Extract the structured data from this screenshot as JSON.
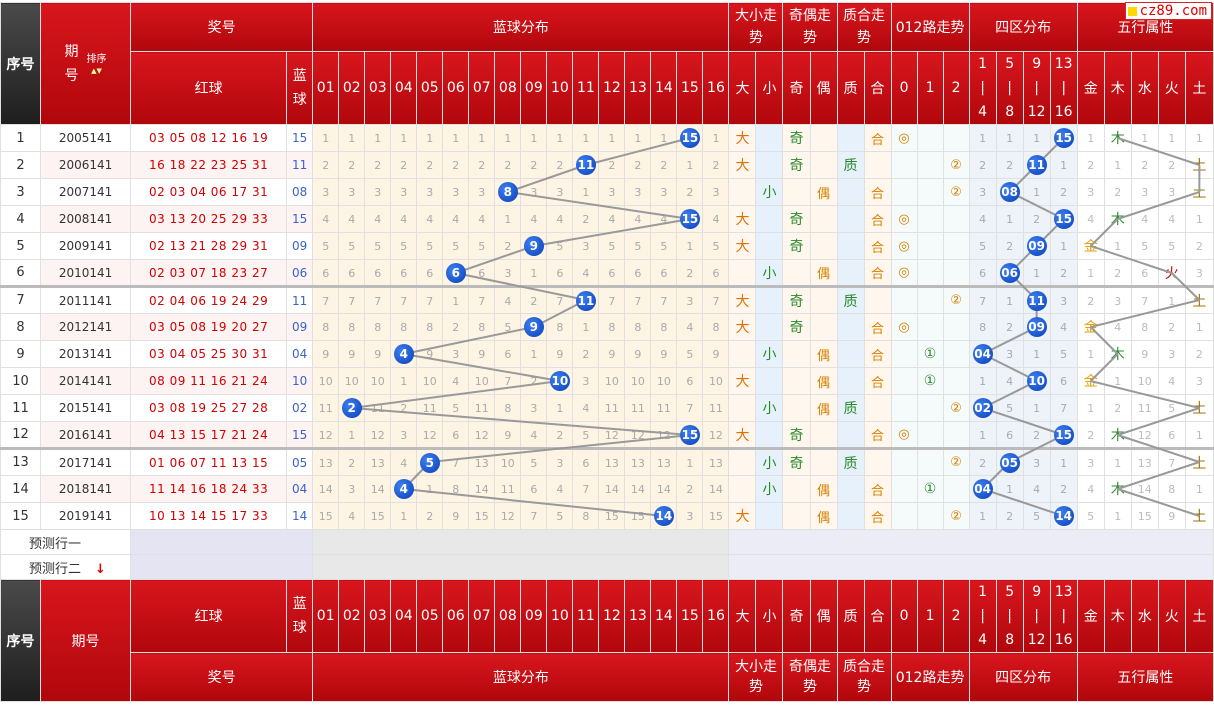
{
  "site_badge": "cz89.com",
  "header": {
    "xuhao": "序号",
    "qihao": "期号",
    "sort": "排序",
    "jianghao": "奖号",
    "blue_dist": "蓝球分布",
    "daxiao": "大小走势",
    "jiou": "奇偶走势",
    "zhihe": "质合走势",
    "lu012": "012路走势",
    "siqu": "四区分布",
    "wuxing": "五行属性",
    "red": "红球",
    "blue": "蓝球",
    "nums": [
      "01",
      "02",
      "03",
      "04",
      "05",
      "06",
      "07",
      "08",
      "09",
      "10",
      "11",
      "12",
      "13",
      "14",
      "15",
      "16"
    ],
    "dx": [
      "大",
      "小"
    ],
    "jo": [
      "奇",
      "偶"
    ],
    "zh": [
      "质",
      "合"
    ],
    "lu": [
      "0",
      "1",
      "2"
    ],
    "qu": [
      [
        "1",
        "4"
      ],
      [
        "5",
        "8"
      ],
      [
        "9",
        "12"
      ],
      [
        "13",
        "16"
      ]
    ],
    "wx": [
      "金",
      "木",
      "水",
      "火",
      "土"
    ]
  },
  "rows": [
    {
      "idx": "1",
      "period": "2005141",
      "reds": "03 05 08 12 16 19",
      "blue": "15",
      "dist": [
        "1",
        "1",
        "1",
        "1",
        "1",
        "1",
        "1",
        "1",
        "1",
        "1",
        "1",
        "1",
        "1",
        "1",
        "15",
        "1"
      ],
      "dx": [
        "大",
        ""
      ],
      "jo": [
        "奇",
        ""
      ],
      "zh": [
        "",
        "合"
      ],
      "lu": [
        "◎",
        "",
        ""
      ],
      "qu": [
        "1",
        "1",
        "1",
        "15"
      ],
      "wx": [
        "1",
        "木",
        "1",
        "1",
        "1"
      ]
    },
    {
      "idx": "2",
      "period": "2006141",
      "reds": "16 18 22 23 25 31",
      "blue": "11",
      "dist": [
        "2",
        "2",
        "2",
        "2",
        "2",
        "2",
        "2",
        "2",
        "2",
        "2",
        "11",
        "2",
        "2",
        "2",
        "1",
        "2"
      ],
      "dx": [
        "大",
        ""
      ],
      "jo": [
        "奇",
        ""
      ],
      "zh": [
        "质",
        ""
      ],
      "lu": [
        "",
        "",
        "②"
      ],
      "qu": [
        "2",
        "2",
        "11",
        "1"
      ],
      "wx": [
        "2",
        "1",
        "2",
        "2",
        "土"
      ]
    },
    {
      "idx": "3",
      "period": "2007141",
      "reds": "02 03 04 06 17 31",
      "blue": "08",
      "dist": [
        "3",
        "3",
        "3",
        "3",
        "3",
        "3",
        "3",
        "8",
        "3",
        "3",
        "1",
        "3",
        "3",
        "3",
        "2",
        "3"
      ],
      "dx": [
        "",
        "小"
      ],
      "jo": [
        "",
        "偶"
      ],
      "zh": [
        "",
        "合"
      ],
      "lu": [
        "",
        "",
        "②"
      ],
      "qu": [
        "3",
        "08",
        "1",
        "2"
      ],
      "wx": [
        "3",
        "2",
        "3",
        "3",
        "土"
      ]
    },
    {
      "idx": "4",
      "period": "2008141",
      "reds": "03 13 20 25 29 33",
      "blue": "15",
      "dist": [
        "4",
        "4",
        "4",
        "4",
        "4",
        "4",
        "4",
        "1",
        "4",
        "4",
        "2",
        "4",
        "4",
        "4",
        "15",
        "4"
      ],
      "dx": [
        "大",
        ""
      ],
      "jo": [
        "奇",
        ""
      ],
      "zh": [
        "",
        "合"
      ],
      "lu": [
        "◎",
        "",
        ""
      ],
      "qu": [
        "4",
        "1",
        "2",
        "15"
      ],
      "wx": [
        "4",
        "木",
        "4",
        "4",
        "1"
      ]
    },
    {
      "idx": "5",
      "period": "2009141",
      "reds": "02 13 21 28 29 31",
      "blue": "09",
      "dist": [
        "5",
        "5",
        "5",
        "5",
        "5",
        "5",
        "5",
        "2",
        "9",
        "5",
        "3",
        "5",
        "5",
        "5",
        "1",
        "5"
      ],
      "dx": [
        "大",
        ""
      ],
      "jo": [
        "奇",
        ""
      ],
      "zh": [
        "",
        "合"
      ],
      "lu": [
        "◎",
        "",
        ""
      ],
      "qu": [
        "5",
        "2",
        "09",
        "1"
      ],
      "wx": [
        "金",
        "1",
        "5",
        "5",
        "2"
      ]
    },
    {
      "idx": "6",
      "period": "2010141",
      "reds": "02 03 07 18 23 27",
      "blue": "06",
      "dist": [
        "6",
        "6",
        "6",
        "6",
        "6",
        "6",
        "6",
        "3",
        "1",
        "6",
        "4",
        "6",
        "6",
        "6",
        "2",
        "6"
      ],
      "dx": [
        "",
        "小"
      ],
      "jo": [
        "",
        "偶"
      ],
      "zh": [
        "",
        "合"
      ],
      "lu": [
        "◎",
        "",
        ""
      ],
      "qu": [
        "6",
        "06",
        "1",
        "2"
      ],
      "wx": [
        "1",
        "2",
        "6",
        "火",
        "3"
      ]
    },
    {
      "idx": "7",
      "period": "2011141",
      "reds": "02 04 06 19 24 29",
      "blue": "11",
      "dist": [
        "7",
        "7",
        "7",
        "7",
        "7",
        "1",
        "7",
        "4",
        "2",
        "7",
        "11",
        "7",
        "7",
        "7",
        "3",
        "7"
      ],
      "dx": [
        "大",
        ""
      ],
      "jo": [
        "奇",
        ""
      ],
      "zh": [
        "质",
        ""
      ],
      "lu": [
        "",
        "",
        "②"
      ],
      "qu": [
        "7",
        "1",
        "11",
        "3"
      ],
      "wx": [
        "2",
        "3",
        "7",
        "1",
        "土"
      ]
    },
    {
      "idx": "8",
      "period": "2012141",
      "reds": "03 05 08 19 20 27",
      "blue": "09",
      "dist": [
        "8",
        "8",
        "8",
        "8",
        "8",
        "2",
        "8",
        "5",
        "9",
        "8",
        "1",
        "8",
        "8",
        "8",
        "4",
        "8"
      ],
      "dx": [
        "大",
        ""
      ],
      "jo": [
        "奇",
        ""
      ],
      "zh": [
        "",
        "合"
      ],
      "lu": [
        "◎",
        "",
        ""
      ],
      "qu": [
        "8",
        "2",
        "09",
        "4"
      ],
      "wx": [
        "金",
        "4",
        "8",
        "2",
        "1"
      ]
    },
    {
      "idx": "9",
      "period": "2013141",
      "reds": "03 04 05 25 30 31",
      "blue": "04",
      "dist": [
        "9",
        "9",
        "9",
        "4",
        "9",
        "3",
        "9",
        "6",
        "1",
        "9",
        "2",
        "9",
        "9",
        "9",
        "5",
        "9"
      ],
      "dx": [
        "",
        "小"
      ],
      "jo": [
        "",
        "偶"
      ],
      "zh": [
        "",
        "合"
      ],
      "lu": [
        "",
        "①",
        ""
      ],
      "qu": [
        "04",
        "3",
        "1",
        "5"
      ],
      "wx": [
        "1",
        "木",
        "9",
        "3",
        "2"
      ]
    },
    {
      "idx": "10",
      "period": "2014141",
      "reds": "08 09 11 16 21 24",
      "blue": "10",
      "dist": [
        "10",
        "10",
        "10",
        "1",
        "10",
        "4",
        "10",
        "7",
        "2",
        "10",
        "3",
        "10",
        "10",
        "10",
        "6",
        "10"
      ],
      "dx": [
        "大",
        ""
      ],
      "jo": [
        "",
        "偶"
      ],
      "zh": [
        "",
        "合"
      ],
      "lu": [
        "",
        "①",
        ""
      ],
      "qu": [
        "1",
        "4",
        "10",
        "6"
      ],
      "wx": [
        "金",
        "1",
        "10",
        "4",
        "3"
      ]
    },
    {
      "idx": "11",
      "period": "2015141",
      "reds": "03 08 19 25 27 28",
      "blue": "02",
      "dist": [
        "11",
        "2",
        "11",
        "2",
        "11",
        "5",
        "11",
        "8",
        "3",
        "1",
        "4",
        "11",
        "11",
        "11",
        "7",
        "11"
      ],
      "dx": [
        "",
        "小"
      ],
      "jo": [
        "",
        "偶"
      ],
      "zh": [
        "质",
        ""
      ],
      "lu": [
        "",
        "",
        "②"
      ],
      "qu": [
        "02",
        "5",
        "1",
        "7"
      ],
      "wx": [
        "1",
        "2",
        "11",
        "5",
        "土"
      ]
    },
    {
      "idx": "12",
      "period": "2016141",
      "reds": "04 13 15 17 21 24",
      "blue": "15",
      "dist": [
        "12",
        "1",
        "12",
        "3",
        "12",
        "6",
        "12",
        "9",
        "4",
        "2",
        "5",
        "12",
        "12",
        "12",
        "15",
        "12"
      ],
      "dx": [
        "大",
        ""
      ],
      "jo": [
        "奇",
        ""
      ],
      "zh": [
        "",
        "合"
      ],
      "lu": [
        "◎",
        "",
        ""
      ],
      "qu": [
        "1",
        "6",
        "2",
        "15"
      ],
      "wx": [
        "2",
        "木",
        "12",
        "6",
        "1"
      ]
    },
    {
      "idx": "13",
      "period": "2017141",
      "reds": "01 06 07 11 13 15",
      "blue": "05",
      "dist": [
        "13",
        "2",
        "13",
        "4",
        "5",
        "7",
        "13",
        "10",
        "5",
        "3",
        "6",
        "13",
        "13",
        "13",
        "1",
        "13"
      ],
      "dx": [
        "",
        "小"
      ],
      "jo": [
        "奇",
        ""
      ],
      "zh": [
        "质",
        ""
      ],
      "lu": [
        "",
        "",
        "②"
      ],
      "qu": [
        "2",
        "05",
        "3",
        "1"
      ],
      "wx": [
        "3",
        "1",
        "13",
        "7",
        "土"
      ]
    },
    {
      "idx": "14",
      "period": "2018141",
      "reds": "11 14 16 18 24 33",
      "blue": "04",
      "dist": [
        "14",
        "3",
        "14",
        "4",
        "1",
        "8",
        "14",
        "11",
        "6",
        "4",
        "7",
        "14",
        "14",
        "14",
        "2",
        "14"
      ],
      "dx": [
        "",
        "小"
      ],
      "jo": [
        "",
        "偶"
      ],
      "zh": [
        "",
        "合"
      ],
      "lu": [
        "",
        "①",
        ""
      ],
      "qu": [
        "04",
        "1",
        "4",
        "2"
      ],
      "wx": [
        "4",
        "木",
        "14",
        "8",
        "1"
      ]
    },
    {
      "idx": "15",
      "period": "2019141",
      "reds": "10 13 14 15 17 33",
      "blue": "14",
      "dist": [
        "15",
        "4",
        "15",
        "1",
        "2",
        "9",
        "15",
        "12",
        "7",
        "5",
        "8",
        "15",
        "15",
        "14",
        "3",
        "15"
      ],
      "dx": [
        "大",
        ""
      ],
      "jo": [
        "",
        "偶"
      ],
      "zh": [
        "",
        "合"
      ],
      "lu": [
        "",
        "",
        "②"
      ],
      "qu": [
        "1",
        "2",
        "5",
        "14"
      ],
      "wx": [
        "5",
        "1",
        "15",
        "9",
        "土"
      ]
    }
  ],
  "predict": [
    "预测行一",
    "预测行二"
  ],
  "predict_arrow": "↓"
}
